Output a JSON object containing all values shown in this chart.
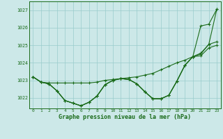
{
  "x": [
    0,
    1,
    2,
    3,
    4,
    5,
    6,
    7,
    8,
    9,
    10,
    11,
    12,
    13,
    14,
    15,
    16,
    17,
    18,
    19,
    20,
    21,
    22,
    23
  ],
  "line1": [
    1023.2,
    1022.9,
    1022.85,
    1022.85,
    1022.85,
    1022.85,
    1022.85,
    1022.85,
    1022.9,
    1023.0,
    1023.05,
    1023.1,
    1023.15,
    1023.2,
    1023.3,
    1023.4,
    1023.6,
    1023.8,
    1024.0,
    1024.15,
    1024.35,
    1024.55,
    1025.05,
    1027.05
  ],
  "line2": [
    1023.2,
    1022.9,
    1022.8,
    1022.4,
    1021.85,
    1021.7,
    1021.55,
    1021.75,
    1022.1,
    1022.75,
    1023.0,
    1023.1,
    1023.05,
    1022.8,
    1022.35,
    1021.95,
    1021.95,
    1022.15,
    1022.95,
    1023.85,
    1024.35,
    1026.1,
    1026.2,
    1027.05
  ],
  "line3": [
    1023.2,
    1022.9,
    1022.8,
    1022.4,
    1021.85,
    1021.7,
    1021.55,
    1021.75,
    1022.1,
    1022.75,
    1023.0,
    1023.1,
    1023.05,
    1022.8,
    1022.35,
    1021.95,
    1021.95,
    1022.15,
    1022.95,
    1023.85,
    1024.35,
    1024.5,
    1025.05,
    1025.2
  ],
  "line4": [
    1023.2,
    1022.9,
    1022.8,
    1022.4,
    1021.85,
    1021.7,
    1021.55,
    1021.75,
    1022.1,
    1022.75,
    1023.0,
    1023.1,
    1023.05,
    1022.8,
    1022.35,
    1021.95,
    1021.95,
    1022.15,
    1022.95,
    1023.85,
    1024.35,
    1024.4,
    1024.85,
    1025.0
  ],
  "line_color": "#1a6b1a",
  "bg_color": "#cce8e8",
  "grid_color": "#99cccc",
  "xlabel": "Graphe pression niveau de la mer (hPa)",
  "ylim_min": 1021.4,
  "ylim_max": 1027.5,
  "yticks": [
    1022,
    1023,
    1024,
    1025,
    1026,
    1027
  ],
  "xticks": [
    0,
    1,
    2,
    3,
    4,
    5,
    6,
    7,
    8,
    9,
    10,
    11,
    12,
    13,
    14,
    15,
    16,
    17,
    18,
    19,
    20,
    21,
    22,
    23
  ],
  "xlim_min": -0.5,
  "xlim_max": 23.5
}
